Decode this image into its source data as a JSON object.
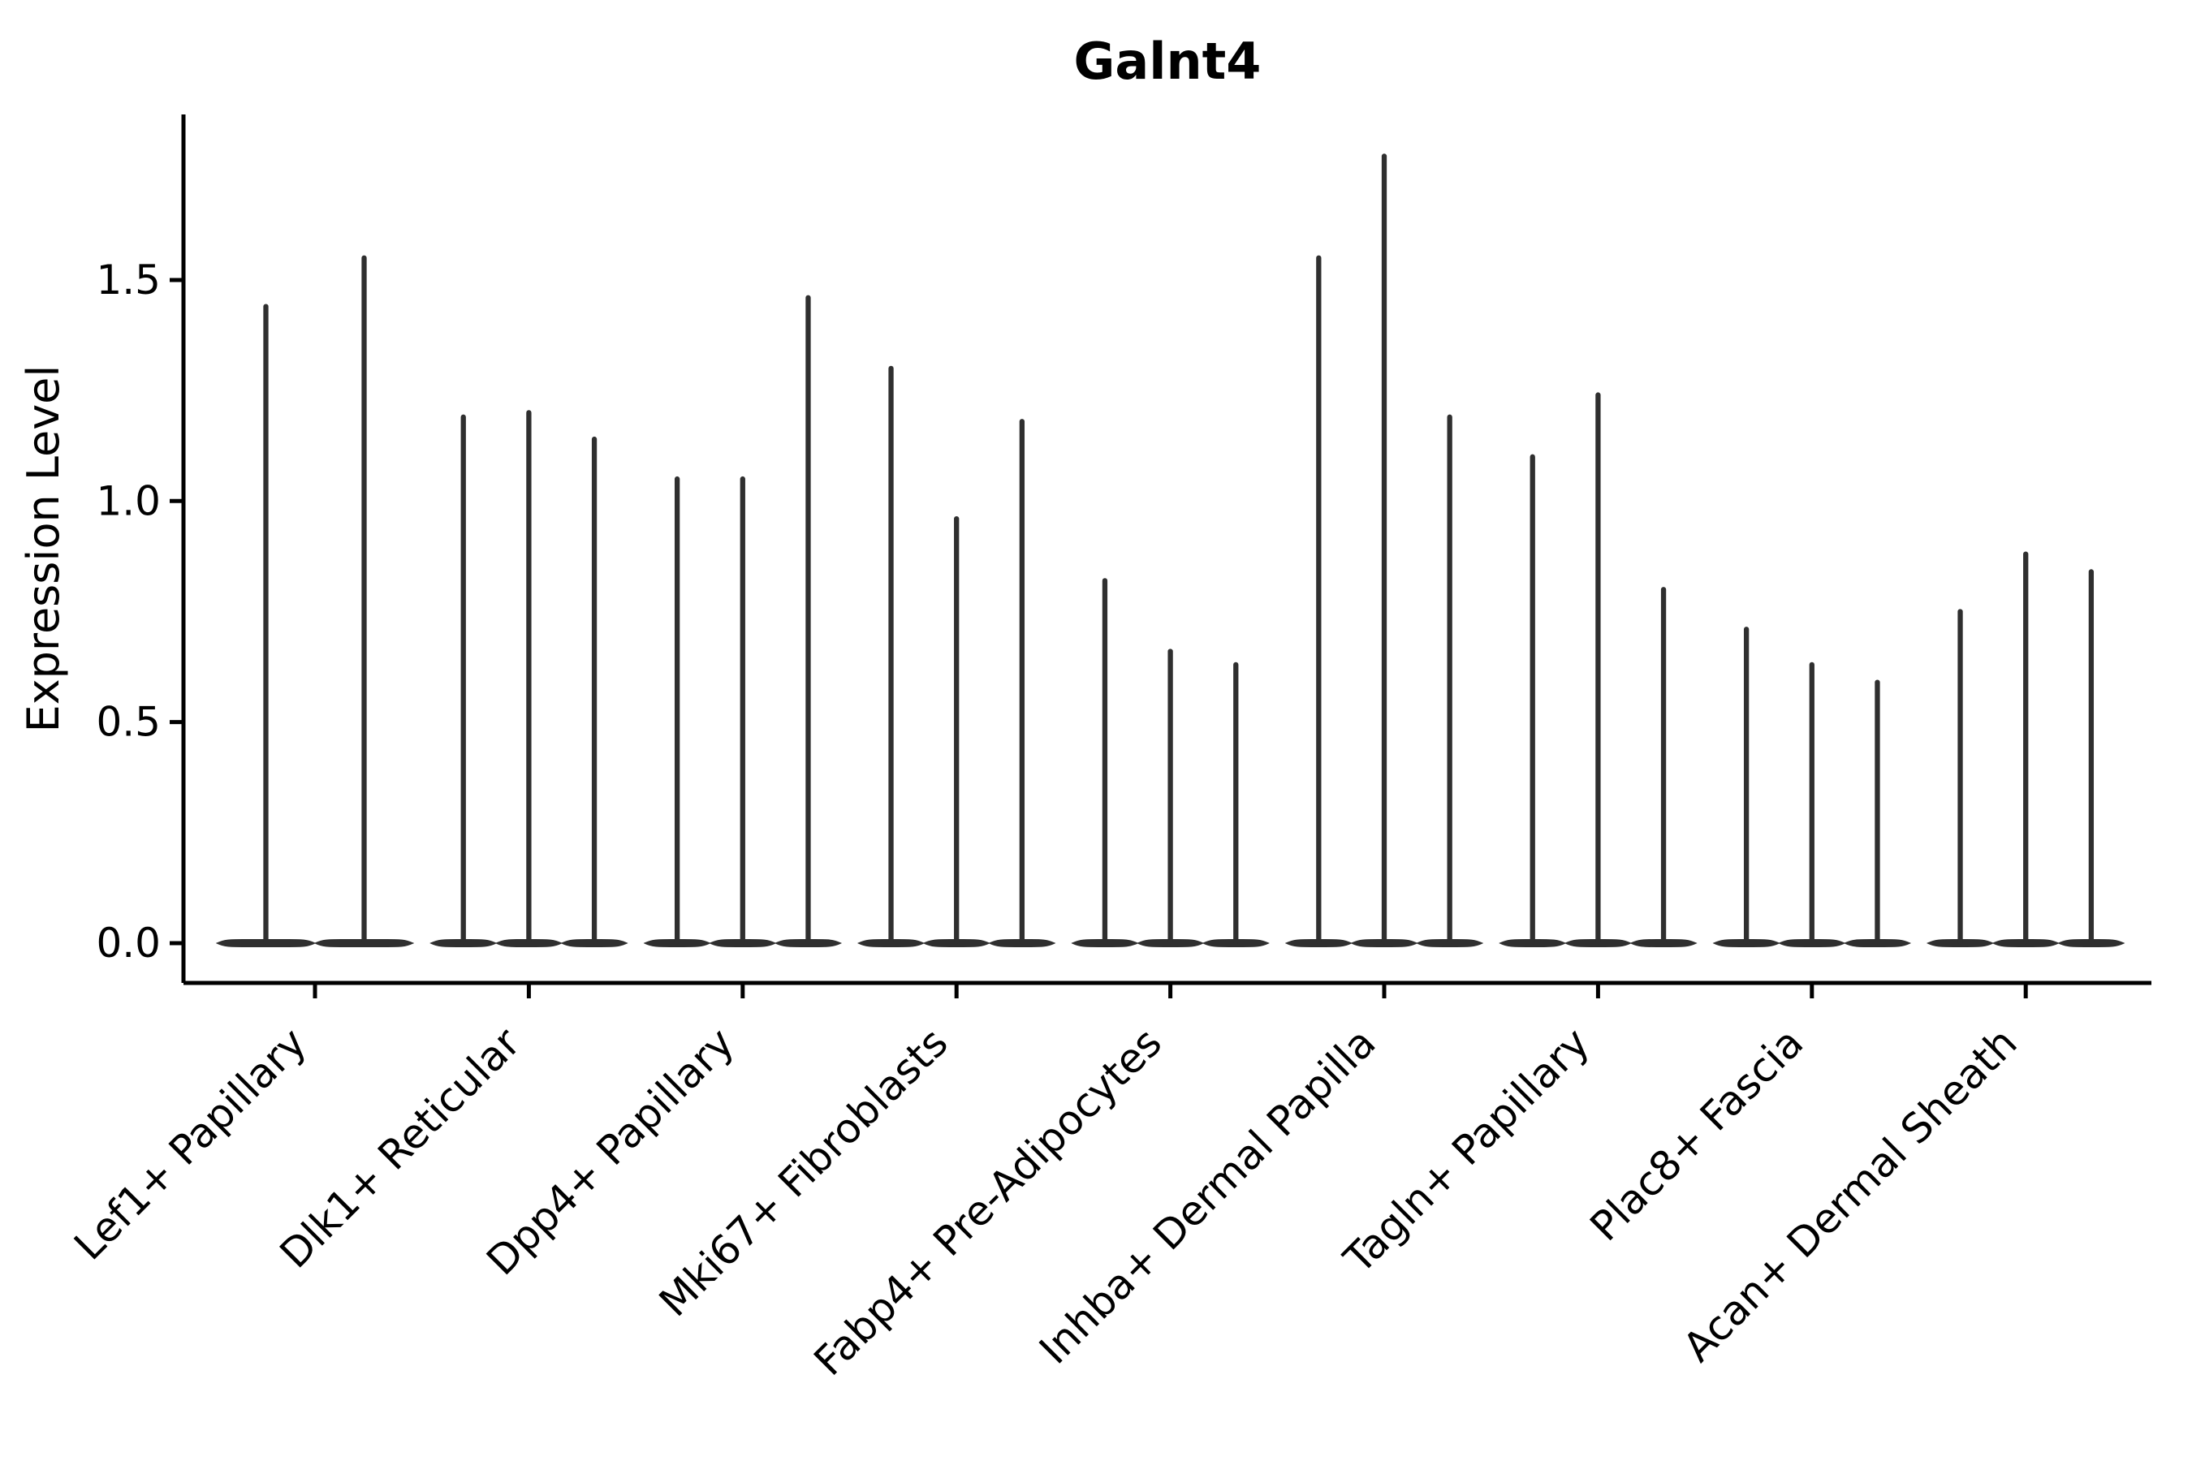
{
  "title": "Galnt4",
  "y_axis": {
    "label": "Expression Level",
    "tick_labels": [
      "0.0",
      "0.5",
      "1.0",
      "1.5"
    ],
    "tick_values": [
      0.0,
      0.5,
      1.0,
      1.5
    ]
  },
  "colors": {
    "violin": "#2f2f2f",
    "axis": "#000000",
    "text": "#000000",
    "background": "#ffffff"
  },
  "chart_data": {
    "type": "violin",
    "title": "Galnt4",
    "xlabel": "",
    "ylabel": "Expression Level",
    "ylim": [
      -0.09,
      1.87
    ],
    "yticks": [
      0.0,
      0.5,
      1.0,
      1.5
    ],
    "grid": false,
    "legend_position": "none",
    "x_tick_rotation_deg": 45,
    "description_of_marks": "Each category shows 2-3 collapsed violins: a flat dense base at expression 0 with a thin spike rising to the maximum expression value.",
    "categories": [
      "Lef1+ Papillary",
      "Dlk1+ Reticular",
      "Dpp4+ Papillary",
      "Mki67+ Fibroblasts",
      "Fabp4+ Pre-Adipocytes",
      "Inhba+ Dermal Papilla",
      "Tagln+ Papillary",
      "Plac8+ Fascia",
      "Acan+ Dermal Sheath"
    ],
    "series": [
      {
        "category": "Lef1+ Papillary",
        "violin_max_values": [
          1.44,
          1.55
        ]
      },
      {
        "category": "Dlk1+ Reticular",
        "violin_max_values": [
          1.19,
          1.2,
          1.14
        ]
      },
      {
        "category": "Dpp4+ Papillary",
        "violin_max_values": [
          1.05,
          1.05,
          1.46
        ]
      },
      {
        "category": "Mki67+ Fibroblasts",
        "violin_max_values": [
          1.3,
          0.96,
          1.18
        ]
      },
      {
        "category": "Fabp4+ Pre-Adipocytes",
        "violin_max_values": [
          0.82,
          0.66,
          0.63
        ]
      },
      {
        "category": "Inhba+ Dermal Papilla",
        "violin_max_values": [
          1.55,
          1.78,
          1.19
        ]
      },
      {
        "category": "Tagln+ Papillary",
        "violin_max_values": [
          1.1,
          1.24,
          0.8
        ]
      },
      {
        "category": "Plac8+ Fascia",
        "violin_max_values": [
          0.71,
          0.63,
          0.59
        ]
      },
      {
        "category": "Acan+ Dermal Sheath",
        "violin_max_values": [
          0.75,
          0.88,
          0.84
        ]
      }
    ],
    "violin_base_value": 0.0
  }
}
